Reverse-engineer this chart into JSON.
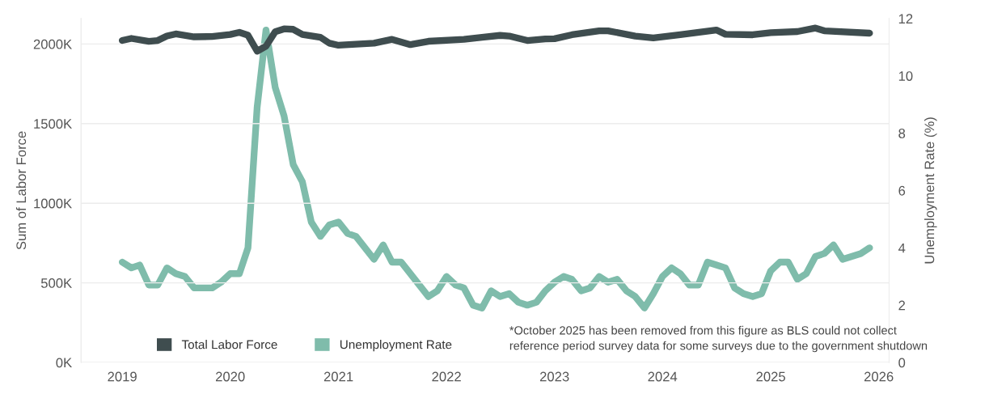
{
  "chart_data": {
    "type": "line",
    "xlim": [
      "2018-08-15",
      "2026-02-05"
    ],
    "xticks": [
      {
        "value": "2019-01-01",
        "label": "2019"
      },
      {
        "value": "2020-01-01",
        "label": "2020"
      },
      {
        "value": "2021-01-01",
        "label": "2021"
      },
      {
        "value": "2022-01-01",
        "label": "2022"
      },
      {
        "value": "2023-01-01",
        "label": "2023"
      },
      {
        "value": "2024-01-01",
        "label": "2024"
      },
      {
        "value": "2025-01-01",
        "label": "2025"
      },
      {
        "value": "2026-01-01",
        "label": "2026"
      }
    ],
    "ylabel": "Sum of Labor Force",
    "y2label": "Unemployment Rate (%)",
    "ylim": [
      0,
      2160
    ],
    "yticks": [
      {
        "value": 0,
        "label": "0K"
      },
      {
        "value": 500,
        "label": "500K"
      },
      {
        "value": 1000,
        "label": "1000K"
      },
      {
        "value": 1500,
        "label": "1500K"
      },
      {
        "value": 2000,
        "label": "2000K"
      }
    ],
    "y2lim": [
      0,
      12
    ],
    "y2ticks": [
      0,
      2,
      4,
      6,
      8,
      10,
      12
    ],
    "grid": "y",
    "legend": "bottom left",
    "marker": "none",
    "line_style": "solid",
    "series": [
      {
        "name": "Total Labor Force",
        "color": "#3f4d4f",
        "x": [
          "2019-01",
          "2019-02",
          "2019-04",
          "2019-05",
          "2019-06",
          "2019-07",
          "2019-09",
          "2019-11",
          "2020-01",
          "2020-02",
          "2020-03",
          "2020-04",
          "2020-05",
          "2020-06",
          "2020-07",
          "2020-08",
          "2020-09",
          "2020-11",
          "2020-12",
          "2021-01",
          "2021-03",
          "2021-05",
          "2021-07",
          "2021-09",
          "2021-11",
          "2022-03",
          "2022-05",
          "2022-07",
          "2022-08",
          "2022-10",
          "2022-12",
          "2023-01",
          "2023-03",
          "2023-06",
          "2023-07",
          "2023-10",
          "2023-12",
          "2024-03",
          "2024-07",
          "2024-08",
          "2024-11",
          "2025-01",
          "2025-04",
          "2025-06",
          "2025-07",
          "2025-12"
        ],
        "values": [
          2022,
          2035,
          2017,
          2022,
          2050,
          2063,
          2045,
          2047,
          2060,
          2073,
          2055,
          1955,
          1986,
          2077,
          2095,
          2092,
          2060,
          2042,
          2005,
          1992,
          1999,
          2005,
          2029,
          1996,
          2017,
          2029,
          2042,
          2054,
          2050,
          2022,
          2032,
          2033,
          2058,
          2083,
          2083,
          2050,
          2038,
          2058,
          2088,
          2061,
          2058,
          2071,
          2078,
          2100,
          2083,
          2068
        ]
      },
      {
        "name": "Unemployment Rate",
        "color": "#7fbcab",
        "axis": "y2",
        "x": [
          "2019-01",
          "2019-02",
          "2019-03",
          "2019-04",
          "2019-05",
          "2019-06",
          "2019-07",
          "2019-08",
          "2019-09",
          "2019-11",
          "2019-12",
          "2020-01",
          "2020-02",
          "2020-03",
          "2020-04",
          "2020-05",
          "2020-06",
          "2020-07",
          "2020-08",
          "2020-09",
          "2020-10",
          "2020-11",
          "2020-12",
          "2021-01",
          "2021-02",
          "2021-03",
          "2021-05",
          "2021-06",
          "2021-07",
          "2021-08",
          "2021-11",
          "2021-12",
          "2022-01",
          "2022-02",
          "2022-03",
          "2022-04",
          "2022-05",
          "2022-06",
          "2022-07",
          "2022-08",
          "2022-09",
          "2022-10",
          "2022-11",
          "2022-12",
          "2023-01",
          "2023-02",
          "2023-03",
          "2023-04",
          "2023-05",
          "2023-06",
          "2023-07",
          "2023-08",
          "2023-09",
          "2023-10",
          "2023-11",
          "2023-12",
          "2024-01",
          "2024-02",
          "2024-03",
          "2024-04",
          "2024-05",
          "2024-06",
          "2024-07",
          "2024-08",
          "2024-09",
          "2024-10",
          "2024-11",
          "2024-12",
          "2025-01",
          "2025-02",
          "2025-03",
          "2025-04",
          "2025-05",
          "2025-06",
          "2025-07",
          "2025-08",
          "2025-09",
          "2025-11",
          "2025-12"
        ],
        "values": [
          3.5,
          3.3,
          3.4,
          2.7,
          2.7,
          3.3,
          3.1,
          3.0,
          2.6,
          2.6,
          2.8,
          3.1,
          3.1,
          4.0,
          8.9,
          11.6,
          9.6,
          8.6,
          6.9,
          6.3,
          4.9,
          4.4,
          4.8,
          4.9,
          4.5,
          4.4,
          3.6,
          4.1,
          3.5,
          3.5,
          2.3,
          2.5,
          3.0,
          2.7,
          2.6,
          2.0,
          1.9,
          2.5,
          2.3,
          2.4,
          2.1,
          2.0,
          2.1,
          2.5,
          2.8,
          3.0,
          2.9,
          2.5,
          2.6,
          3.0,
          2.8,
          2.9,
          2.5,
          2.3,
          1.9,
          2.4,
          3.0,
          3.3,
          3.1,
          2.7,
          2.7,
          3.5,
          3.4,
          3.3,
          2.6,
          2.4,
          2.3,
          2.4,
          3.2,
          3.5,
          3.5,
          2.9,
          3.1,
          3.7,
          3.8,
          4.1,
          3.6,
          3.8,
          4.0
        ]
      }
    ],
    "annotations": [
      "*October 2025 has been removed from this figure as BLS could not collect\nreference period survey data for some surveys due to the government shutdown"
    ]
  }
}
